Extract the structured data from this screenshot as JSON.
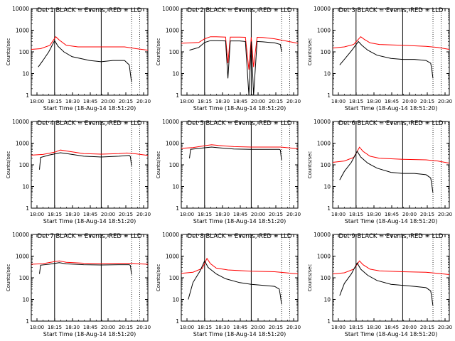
{
  "figure": {
    "ylabel": "Counts/sec",
    "xlabel": "Start Time (18-Aug-14 18:51:20)",
    "x_tick_labels": [
      "18:00",
      "18:15",
      "18:30",
      "18:45",
      "20:00",
      "20:15",
      "20:30"
    ],
    "y_tick_labels": [
      "1",
      "10",
      "100",
      "1000",
      "10000"
    ],
    "colors": {
      "events": "#000000",
      "lld": "#ff0000",
      "axes": "#000000",
      "background": "#ffffff"
    }
  },
  "chart_data": [
    {
      "type": "line",
      "title": "Det 1 BLACK = Events, RED = LLD",
      "ylim": [
        1,
        10000
      ],
      "log_y": true,
      "xlim": [
        0,
        1
      ],
      "vlines_solid": [
        0.2,
        0.6
      ],
      "vlines_dotted": [
        0.86,
        0.93
      ],
      "series": [
        {
          "name": "LLD",
          "x": [
            0.0,
            0.08,
            0.16,
            0.21,
            0.24,
            0.3,
            0.4,
            0.6,
            0.8,
            0.9,
            1.0
          ],
          "y": [
            130,
            140,
            200,
            500,
            350,
            200,
            170,
            170,
            170,
            140,
            120
          ]
        },
        {
          "name": "Events",
          "x": [
            0.06,
            0.1,
            0.15,
            0.2,
            0.23,
            0.28,
            0.35,
            0.5,
            0.6,
            0.7,
            0.8,
            0.84,
            0.85,
            0.86
          ],
          "y": [
            20,
            40,
            100,
            330,
            180,
            100,
            60,
            40,
            35,
            40,
            40,
            25,
            10,
            4
          ]
        }
      ]
    },
    {
      "type": "line",
      "title": "Det 2 BLACK = Events, RED = LLD",
      "ylim": [
        1,
        10000
      ],
      "log_y": true,
      "xlim": [
        0,
        1
      ],
      "vlines_solid": [
        0.2,
        0.6
      ],
      "vlines_dotted": [
        0.86,
        0.93
      ],
      "series": [
        {
          "name": "LLD",
          "x": [
            0.0,
            0.15,
            0.2,
            0.25,
            0.3,
            0.38,
            0.4,
            0.42,
            0.5,
            0.55,
            0.58,
            0.6,
            0.62,
            0.65,
            0.7,
            0.8,
            1.0
          ],
          "y": [
            250,
            270,
            400,
            500,
            500,
            480,
            30,
            480,
            480,
            470,
            15,
            470,
            20,
            470,
            460,
            400,
            250
          ]
        },
        {
          "name": "Events",
          "x": [
            0.07,
            0.15,
            0.2,
            0.25,
            0.3,
            0.38,
            0.4,
            0.42,
            0.5,
            0.55,
            0.58,
            0.6,
            0.62,
            0.65,
            0.7,
            0.8,
            0.85,
            0.86
          ],
          "y": [
            120,
            160,
            270,
            330,
            330,
            320,
            6,
            320,
            320,
            300,
            1,
            300,
            1,
            300,
            290,
            260,
            220,
            100
          ]
        }
      ]
    },
    {
      "type": "line",
      "title": "Det 3 BLACK = Events, RED = LLD",
      "ylim": [
        1,
        10000
      ],
      "log_y": true,
      "xlim": [
        0,
        1
      ],
      "vlines_solid": [
        0.2,
        0.6
      ],
      "vlines_dotted": [
        0.86,
        0.93
      ],
      "series": [
        {
          "name": "LLD",
          "x": [
            0.0,
            0.1,
            0.18,
            0.24,
            0.27,
            0.32,
            0.4,
            0.6,
            0.8,
            0.9,
            1.0
          ],
          "y": [
            150,
            170,
            220,
            500,
            380,
            260,
            220,
            200,
            180,
            160,
            130
          ]
        },
        {
          "name": "Events",
          "x": [
            0.06,
            0.1,
            0.16,
            0.22,
            0.25,
            0.3,
            0.38,
            0.5,
            0.6,
            0.7,
            0.8,
            0.84,
            0.85,
            0.86
          ],
          "y": [
            25,
            45,
            110,
            300,
            200,
            120,
            70,
            50,
            45,
            45,
            40,
            30,
            15,
            6
          ]
        }
      ]
    },
    {
      "type": "line",
      "title": "Det 4 BLACK = Events, RED = LLD",
      "ylim": [
        1,
        10000
      ],
      "log_y": true,
      "xlim": [
        0,
        1
      ],
      "vlines_solid": [
        0.2,
        0.6
      ],
      "vlines_dotted": [
        0.86,
        0.93
      ],
      "series": [
        {
          "name": "LLD",
          "x": [
            0.0,
            0.1,
            0.2,
            0.25,
            0.32,
            0.45,
            0.6,
            0.75,
            0.82,
            0.9,
            1.0
          ],
          "y": [
            280,
            300,
            380,
            480,
            420,
            330,
            310,
            330,
            350,
            320,
            270
          ]
        },
        {
          "name": "Events",
          "x": [
            0.07,
            0.08,
            0.15,
            0.25,
            0.32,
            0.45,
            0.6,
            0.75,
            0.84,
            0.85,
            0.86
          ],
          "y": [
            60,
            220,
            280,
            360,
            320,
            250,
            230,
            250,
            270,
            240,
            90
          ]
        }
      ]
    },
    {
      "type": "line",
      "title": "Det 5 BLACK = Events, RED = LLD",
      "ylim": [
        1,
        10000
      ],
      "log_y": true,
      "xlim": [
        0,
        1
      ],
      "vlines_solid": [
        0.2,
        0.6
      ],
      "vlines_dotted": [
        0.86,
        0.93
      ],
      "series": [
        {
          "name": "LLD",
          "x": [
            0.0,
            0.1,
            0.2,
            0.26,
            0.32,
            0.45,
            0.6,
            0.75,
            0.85,
            0.9,
            1.0
          ],
          "y": [
            580,
            620,
            760,
            850,
            780,
            690,
            660,
            660,
            660,
            620,
            560
          ]
        },
        {
          "name": "Events",
          "x": [
            0.07,
            0.08,
            0.15,
            0.26,
            0.32,
            0.45,
            0.6,
            0.75,
            0.84,
            0.85,
            0.86
          ],
          "y": [
            200,
            520,
            570,
            660,
            610,
            540,
            520,
            520,
            520,
            480,
            160
          ]
        }
      ]
    },
    {
      "type": "line",
      "title": "Det 6 BLACK = Events, RED = LLD",
      "ylim": [
        1,
        10000
      ],
      "log_y": true,
      "xlim": [
        0,
        1
      ],
      "vlines_solid": [
        0.2,
        0.6
      ],
      "vlines_dotted": [
        0.86,
        0.93
      ],
      "series": [
        {
          "name": "LLD",
          "x": [
            0.0,
            0.1,
            0.18,
            0.23,
            0.26,
            0.32,
            0.4,
            0.6,
            0.8,
            0.9,
            1.0
          ],
          "y": [
            130,
            150,
            220,
            650,
            420,
            250,
            200,
            180,
            170,
            150,
            120
          ]
        },
        {
          "name": "Events",
          "x": [
            0.06,
            0.1,
            0.16,
            0.21,
            0.24,
            0.3,
            0.38,
            0.5,
            0.6,
            0.7,
            0.8,
            0.84,
            0.85,
            0.86
          ],
          "y": [
            20,
            50,
            130,
            420,
            230,
            120,
            70,
            45,
            40,
            40,
            35,
            25,
            12,
            5
          ]
        }
      ]
    },
    {
      "type": "line",
      "title": "Det 7 BLACK = Events, RED = LLD",
      "ylim": [
        1,
        10000
      ],
      "log_y": true,
      "xlim": [
        0,
        1
      ],
      "vlines_solid": [
        0.2,
        0.6
      ],
      "vlines_dotted": [
        0.86,
        0.93
      ],
      "series": [
        {
          "name": "LLD",
          "x": [
            0.0,
            0.1,
            0.2,
            0.24,
            0.3,
            0.45,
            0.6,
            0.75,
            0.85,
            0.9,
            1.0
          ],
          "y": [
            420,
            450,
            560,
            600,
            520,
            470,
            450,
            470,
            470,
            450,
            420
          ]
        },
        {
          "name": "Events",
          "x": [
            0.07,
            0.08,
            0.15,
            0.24,
            0.3,
            0.45,
            0.6,
            0.75,
            0.84,
            0.85,
            0.86
          ],
          "y": [
            150,
            380,
            420,
            500,
            440,
            400,
            390,
            400,
            400,
            370,
            140
          ]
        }
      ]
    },
    {
      "type": "line",
      "title": "Det 8 BLACK = Events, RED = LLD",
      "ylim": [
        1,
        10000
      ],
      "log_y": true,
      "xlim": [
        0,
        1
      ],
      "vlines_solid": [
        0.2,
        0.6
      ],
      "vlines_dotted": [
        0.86,
        0.93
      ],
      "series": [
        {
          "name": "LLD",
          "x": [
            0.0,
            0.1,
            0.18,
            0.22,
            0.25,
            0.3,
            0.4,
            0.6,
            0.8,
            0.9,
            1.0
          ],
          "y": [
            160,
            180,
            270,
            780,
            450,
            280,
            230,
            200,
            190,
            170,
            150
          ]
        },
        {
          "name": "Events",
          "x": [
            0.06,
            0.1,
            0.16,
            0.2,
            0.23,
            0.3,
            0.38,
            0.5,
            0.6,
            0.7,
            0.8,
            0.84,
            0.85,
            0.86
          ],
          "y": [
            10,
            60,
            200,
            600,
            300,
            150,
            90,
            60,
            50,
            45,
            40,
            30,
            15,
            6
          ]
        }
      ]
    },
    {
      "type": "line",
      "title": "Det 9 BLACK = Events, RED = LLD",
      "ylim": [
        1,
        10000
      ],
      "log_y": true,
      "xlim": [
        0,
        1
      ],
      "vlines_solid": [
        0.2,
        0.6
      ],
      "vlines_dotted": [
        0.86,
        0.93
      ],
      "series": [
        {
          "name": "LLD",
          "x": [
            0.0,
            0.1,
            0.18,
            0.23,
            0.26,
            0.32,
            0.4,
            0.6,
            0.8,
            0.9,
            1.0
          ],
          "y": [
            150,
            170,
            250,
            600,
            400,
            250,
            210,
            190,
            180,
            160,
            140
          ]
        },
        {
          "name": "Events",
          "x": [
            0.06,
            0.1,
            0.16,
            0.21,
            0.24,
            0.3,
            0.38,
            0.5,
            0.6,
            0.7,
            0.8,
            0.84,
            0.85,
            0.86
          ],
          "y": [
            15,
            55,
            150,
            480,
            250,
            130,
            75,
            50,
            45,
            40,
            35,
            25,
            12,
            5
          ]
        }
      ]
    }
  ]
}
